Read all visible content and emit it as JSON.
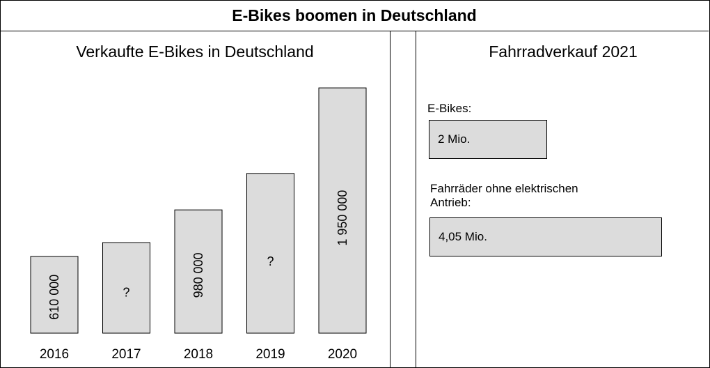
{
  "header": {
    "title": "E-Bikes boomen in Deutschland"
  },
  "chart_data": {
    "type": "bar",
    "title": "Verkaufte E-Bikes in Deutschland",
    "categories": [
      "2016",
      "2017",
      "2018",
      "2019",
      "2020"
    ],
    "values": [
      610000,
      720000,
      980000,
      1270000,
      1950000
    ],
    "bar_labels": [
      "610 000",
      "?",
      "980 000",
      "?",
      "1 950 000"
    ],
    "ylim": [
      0,
      2150000
    ],
    "colors": {
      "bar_fill": "#dcdcdc",
      "bar_stroke": "#000000"
    },
    "grid": false,
    "legend": "none"
  },
  "right_panel": {
    "title": "Fahrradverkauf 2021",
    "ebikes_label": "E-Bikes:",
    "ebikes_value": "2 Mio.",
    "other_label_line1": "Fahrräder ohne elektrischen",
    "other_label_line2": "Antrieb:",
    "other_value": "4,05 Mio."
  }
}
